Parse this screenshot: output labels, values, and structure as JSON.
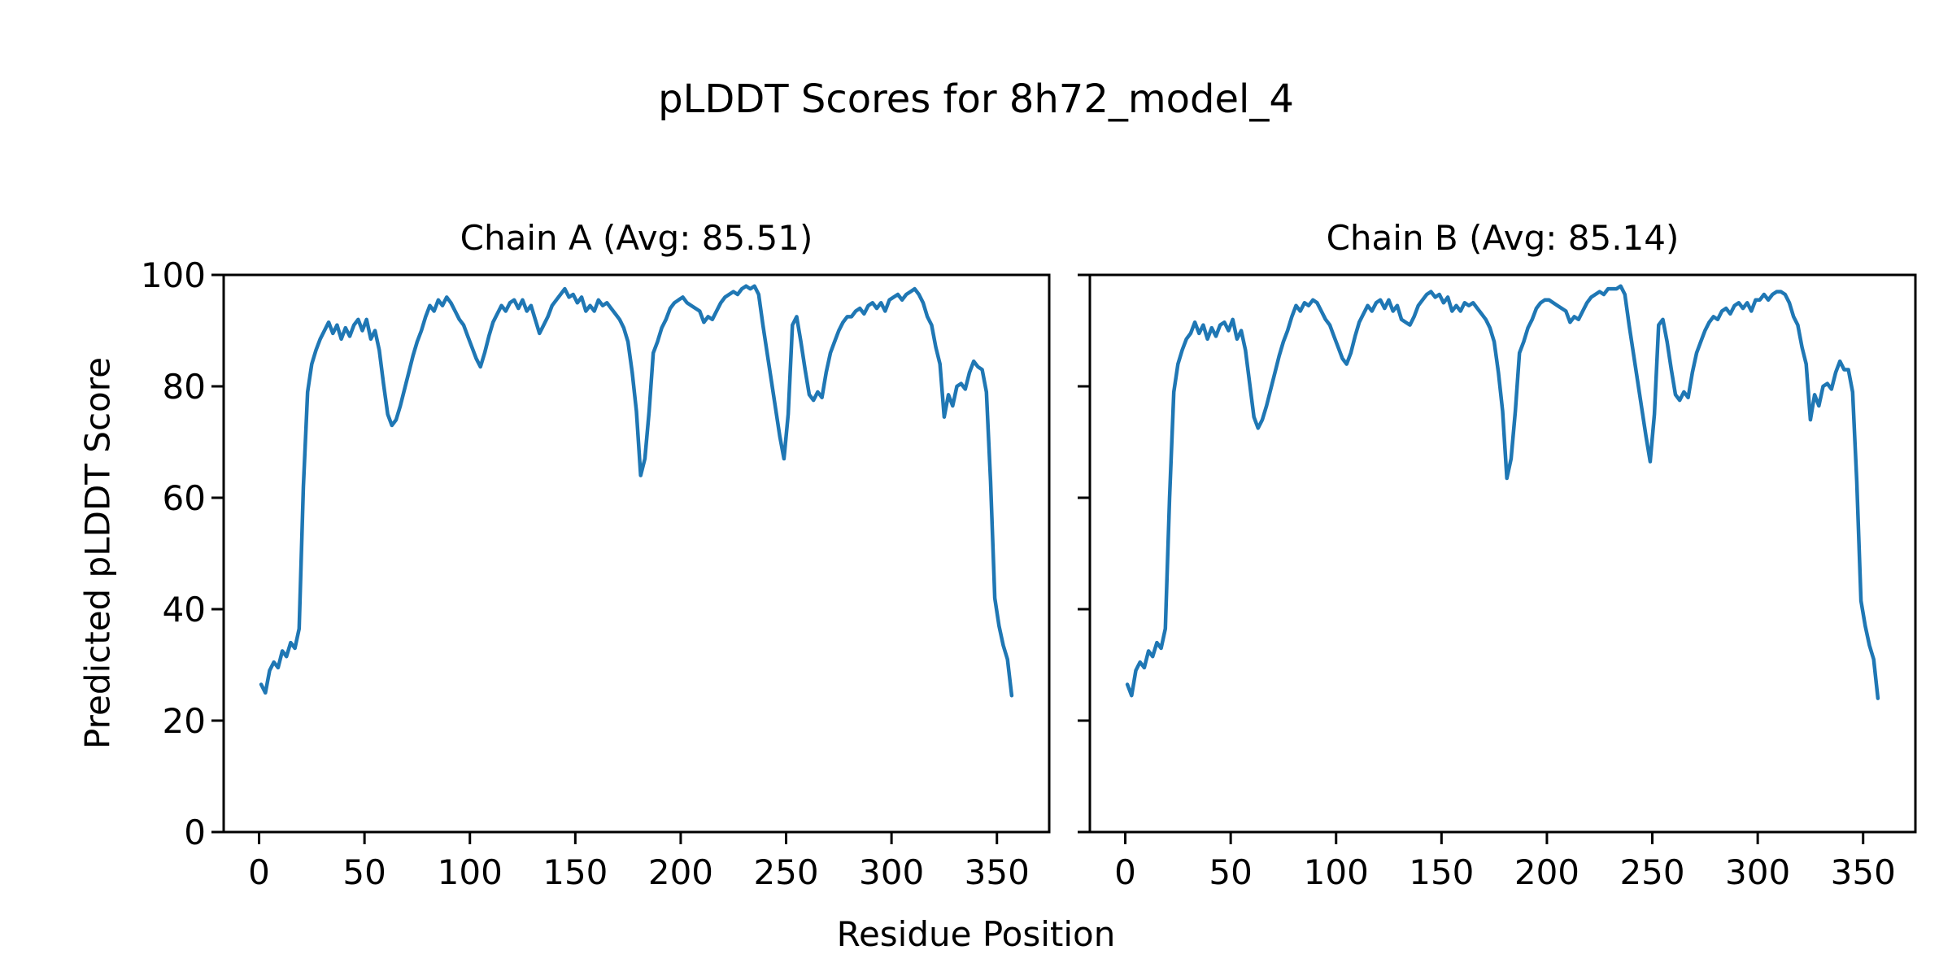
{
  "figure": {
    "title": "pLDDT Scores for 8h72_model_4",
    "xlabel": "Residue Position",
    "ylabel": "Predicted pLDDT Score",
    "background_color": "#ffffff",
    "text_color": "#000000",
    "spine_color": "#000000",
    "line_color": "#1f77b4"
  },
  "chart_data": [
    {
      "type": "line",
      "title": "Chain A (Avg: 85.51)",
      "avg_plddt": 85.51,
      "xlabel": "Residue Position",
      "ylabel": "Predicted pLDDT Score",
      "xlim": [
        -16.8,
        374.8
      ],
      "ylim": [
        0,
        100
      ],
      "xticks": [
        0,
        50,
        100,
        150,
        200,
        250,
        300,
        350
      ],
      "yticks": [
        0,
        20,
        40,
        60,
        80,
        100
      ],
      "show_ytick_labels": true,
      "grid": false,
      "legend": "none",
      "x": [
        1,
        3,
        5,
        7,
        9,
        11,
        13,
        15,
        17,
        19,
        21,
        23,
        25,
        27,
        29,
        31,
        33,
        35,
        37,
        39,
        41,
        43,
        45,
        47,
        49,
        51,
        53,
        55,
        57,
        59,
        61,
        63,
        65,
        67,
        69,
        71,
        73,
        75,
        77,
        79,
        81,
        83,
        85,
        87,
        89,
        91,
        93,
        95,
        97,
        99,
        101,
        103,
        105,
        107,
        109,
        111,
        113,
        115,
        117,
        119,
        121,
        123,
        125,
        127,
        129,
        131,
        133,
        135,
        137,
        139,
        141,
        143,
        145,
        147,
        149,
        151,
        153,
        155,
        157,
        159,
        161,
        163,
        165,
        167,
        169,
        171,
        173,
        175,
        177,
        179,
        181,
        183,
        185,
        187,
        189,
        191,
        193,
        195,
        197,
        199,
        201,
        203,
        205,
        207,
        209,
        211,
        213,
        215,
        217,
        219,
        221,
        223,
        225,
        227,
        229,
        231,
        233,
        235,
        237,
        239,
        241,
        243,
        245,
        247,
        249,
        251,
        253,
        255,
        257,
        259,
        261,
        263,
        265,
        267,
        269,
        271,
        273,
        275,
        277,
        279,
        281,
        283,
        285,
        287,
        289,
        291,
        293,
        295,
        297,
        299,
        301,
        303,
        305,
        307,
        309,
        311,
        313,
        315,
        317,
        319,
        321,
        323,
        325,
        327,
        329,
        331,
        333,
        335,
        337,
        339,
        341,
        343,
        345,
        347,
        349,
        351,
        353,
        355,
        357
      ],
      "y": [
        26.5,
        25.0,
        29.0,
        30.5,
        29.5,
        32.5,
        31.5,
        34.0,
        33.0,
        36.5,
        62.0,
        79.0,
        84.0,
        86.5,
        88.5,
        90.0,
        91.5,
        89.5,
        91.0,
        88.5,
        90.5,
        89.0,
        91.0,
        92.0,
        90.0,
        92.0,
        88.5,
        90.0,
        86.5,
        80.5,
        75.0,
        73.0,
        74.0,
        76.5,
        79.5,
        82.5,
        85.5,
        88.0,
        90.0,
        92.5,
        94.5,
        93.5,
        95.5,
        94.5,
        96.0,
        95.0,
        93.5,
        92.0,
        91.0,
        89.0,
        87.0,
        85.0,
        83.5,
        86.0,
        89.0,
        91.5,
        93.0,
        94.5,
        93.5,
        95.0,
        95.5,
        94.0,
        95.5,
        93.5,
        94.5,
        92.0,
        89.5,
        91.0,
        92.5,
        94.5,
        95.5,
        96.5,
        97.5,
        96.0,
        96.5,
        95.0,
        96.0,
        93.5,
        94.5,
        93.5,
        95.5,
        94.5,
        95.0,
        94.0,
        93.0,
        92.0,
        90.5,
        88.0,
        82.5,
        75.5,
        64.0,
        67.0,
        75.5,
        86.0,
        88.0,
        90.5,
        92.0,
        94.0,
        95.0,
        95.5,
        96.0,
        95.0,
        94.5,
        94.0,
        93.5,
        91.5,
        92.5,
        92.0,
        93.5,
        95.0,
        96.0,
        96.5,
        97.0,
        96.5,
        97.5,
        98.0,
        97.5,
        98.0,
        96.5,
        91.0,
        86.0,
        81.0,
        76.0,
        71.0,
        67.0,
        75.0,
        91.0,
        92.5,
        88.0,
        83.0,
        78.5,
        77.5,
        79.0,
        78.0,
        82.5,
        86.0,
        88.0,
        90.0,
        91.5,
        92.5,
        92.5,
        93.5,
        94.0,
        93.0,
        94.5,
        95.0,
        94.0,
        95.0,
        93.5,
        95.5,
        96.0,
        96.5,
        95.5,
        96.5,
        97.0,
        97.5,
        96.5,
        95.0,
        92.5,
        91.0,
        87.0,
        84.0,
        74.5,
        78.5,
        76.5,
        80.0,
        80.5,
        79.5,
        82.5,
        84.5,
        83.5,
        83.0,
        79.0,
        63.0,
        42.0,
        37.0,
        33.5,
        31.0,
        24.5
      ]
    },
    {
      "type": "line",
      "title": "Chain B (Avg: 85.14)",
      "avg_plddt": 85.14,
      "xlabel": "Residue Position",
      "ylabel": "Predicted pLDDT Score",
      "xlim": [
        -16.8,
        374.8
      ],
      "ylim": [
        0,
        100
      ],
      "xticks": [
        0,
        50,
        100,
        150,
        200,
        250,
        300,
        350
      ],
      "yticks": [
        0,
        20,
        40,
        60,
        80,
        100
      ],
      "show_ytick_labels": false,
      "grid": false,
      "legend": "none",
      "x": [
        1,
        3,
        5,
        7,
        9,
        11,
        13,
        15,
        17,
        19,
        21,
        23,
        25,
        27,
        29,
        31,
        33,
        35,
        37,
        39,
        41,
        43,
        45,
        47,
        49,
        51,
        53,
        55,
        57,
        59,
        61,
        63,
        65,
        67,
        69,
        71,
        73,
        75,
        77,
        79,
        81,
        83,
        85,
        87,
        89,
        91,
        93,
        95,
        97,
        99,
        101,
        103,
        105,
        107,
        109,
        111,
        113,
        115,
        117,
        119,
        121,
        123,
        125,
        127,
        129,
        131,
        133,
        135,
        137,
        139,
        141,
        143,
        145,
        147,
        149,
        151,
        153,
        155,
        157,
        159,
        161,
        163,
        165,
        167,
        169,
        171,
        173,
        175,
        177,
        179,
        181,
        183,
        185,
        187,
        189,
        191,
        193,
        195,
        197,
        199,
        201,
        203,
        205,
        207,
        209,
        211,
        213,
        215,
        217,
        219,
        221,
        223,
        225,
        227,
        229,
        231,
        233,
        235,
        237,
        239,
        241,
        243,
        245,
        247,
        249,
        251,
        253,
        255,
        257,
        259,
        261,
        263,
        265,
        267,
        269,
        271,
        273,
        275,
        277,
        279,
        281,
        283,
        285,
        287,
        289,
        291,
        293,
        295,
        297,
        299,
        301,
        303,
        305,
        307,
        309,
        311,
        313,
        315,
        317,
        319,
        321,
        323,
        325,
        327,
        329,
        331,
        333,
        335,
        337,
        339,
        341,
        343,
        345,
        347,
        349,
        351,
        353,
        355,
        357
      ],
      "y": [
        26.5,
        24.5,
        29.0,
        30.5,
        29.5,
        32.5,
        31.5,
        34.0,
        33.0,
        36.5,
        60.0,
        79.0,
        84.0,
        86.5,
        88.5,
        89.5,
        91.5,
        89.5,
        91.0,
        88.5,
        90.5,
        89.0,
        91.0,
        91.5,
        90.0,
        92.0,
        88.5,
        90.0,
        86.5,
        80.5,
        74.5,
        72.5,
        74.0,
        76.5,
        79.5,
        82.5,
        85.5,
        88.0,
        90.0,
        92.5,
        94.5,
        93.5,
        95.0,
        94.5,
        95.5,
        95.0,
        93.5,
        92.0,
        91.0,
        89.0,
        87.0,
        85.0,
        84.0,
        86.0,
        89.0,
        91.5,
        93.0,
        94.5,
        93.5,
        95.0,
        95.5,
        94.0,
        95.5,
        93.5,
        94.5,
        92.0,
        91.5,
        91.0,
        92.5,
        94.5,
        95.5,
        96.5,
        97.0,
        96.0,
        96.5,
        95.0,
        96.0,
        93.5,
        94.5,
        93.5,
        95.0,
        94.5,
        95.0,
        94.0,
        93.0,
        92.0,
        90.5,
        88.0,
        82.5,
        75.5,
        63.5,
        67.0,
        75.5,
        86.0,
        88.0,
        90.5,
        92.0,
        94.0,
        95.0,
        95.5,
        95.5,
        95.0,
        94.5,
        94.0,
        93.5,
        91.5,
        92.5,
        92.0,
        93.5,
        95.0,
        96.0,
        96.5,
        97.0,
        96.5,
        97.5,
        97.5,
        97.5,
        98.0,
        96.5,
        91.0,
        86.0,
        81.0,
        76.0,
        71.0,
        66.5,
        75.0,
        91.0,
        92.0,
        88.0,
        83.0,
        78.5,
        77.5,
        79.0,
        78.0,
        82.5,
        86.0,
        88.0,
        90.0,
        91.5,
        92.5,
        92.0,
        93.5,
        94.0,
        93.0,
        94.5,
        95.0,
        94.0,
        95.0,
        93.5,
        95.5,
        95.5,
        96.5,
        95.5,
        96.5,
        97.0,
        97.0,
        96.5,
        95.0,
        92.5,
        91.0,
        87.0,
        84.0,
        74.0,
        78.5,
        76.5,
        80.0,
        80.5,
        79.5,
        82.5,
        84.5,
        83.0,
        83.0,
        79.0,
        63.0,
        41.5,
        37.0,
        33.5,
        31.0,
        24.0
      ]
    }
  ]
}
